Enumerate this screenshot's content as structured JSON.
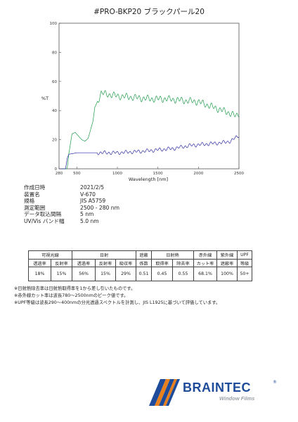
{
  "title": "#PRO-BKP20 ブラックパール20",
  "chart_data": {
    "type": "line",
    "xlabel": "Wavelength [nm]",
    "ylabel": "%T",
    "xlim": [
      280,
      2500
    ],
    "ylim": [
      0,
      100
    ],
    "x_ticks": [
      "280",
      "500",
      "1000",
      "1500",
      "2000",
      "2500"
    ],
    "y_ticks": [
      "0",
      "20",
      "40",
      "60",
      "80",
      "100"
    ],
    "grid": false,
    "series": [
      {
        "color": "#1f9a4a",
        "x": [
          280,
          380,
          400,
          440,
          480,
          560,
          600,
          640,
          700,
          720,
          800,
          900,
          1000,
          1200,
          1400,
          1600,
          1800,
          2000,
          2100,
          2200,
          2300,
          2400,
          2460,
          2500
        ],
        "y": [
          0,
          0,
          10,
          24,
          25,
          20,
          19,
          21,
          33,
          42,
          52,
          51,
          50,
          49,
          48,
          48,
          47,
          46,
          44,
          42,
          40,
          38,
          36,
          38
        ]
      },
      {
        "color": "#2a2aa0",
        "x": [
          280,
          360,
          380,
          400,
          500,
          700,
          1000,
          1300,
          1500,
          1700,
          1900,
          2100,
          2300,
          2400,
          2500
        ],
        "y": [
          0,
          0,
          7,
          10,
          11,
          11,
          11,
          12,
          13,
          14,
          16,
          17,
          18,
          19,
          23
        ]
      }
    ]
  },
  "measurement": [
    {
      "label": "作成日時",
      "value": "2021/2/5"
    },
    {
      "label": "装置名",
      "value": "V-670"
    },
    {
      "label": "規格",
      "value": "JIS A5759"
    },
    {
      "label": "測定範囲",
      "value": "2500 - 280 nm"
    },
    {
      "label": "データ取込間隔",
      "value": "5 nm"
    },
    {
      "label": "UV/Vis バンド幅",
      "value": "5.0 nm"
    }
  ],
  "table": {
    "groups": {
      "visible": "可視光線",
      "solar": "日射",
      "shading": "遮蔽",
      "heat": "日射熱",
      "ir": "赤外線",
      "uv": "紫外線",
      "upf": "UPF"
    },
    "subheaders": [
      "透過率",
      "反射率",
      "透過率",
      "反射率",
      "吸収率",
      "係数",
      "取得率",
      "除去率",
      "カット率",
      "遮蔽率",
      "等級"
    ],
    "values": [
      "18%",
      "15%",
      "56%",
      "15%",
      "29%",
      "0.51",
      "0.45",
      "0.55",
      "68.1%",
      "100%",
      "50+"
    ]
  },
  "notes": [
    "※日射熱除去率は日射熱取得率を1から差し引いたものです。",
    "※赤外線カット率は波長780～2500nmのピーク値です。",
    "※UPF等級は波長290～400nmの分光透過スペクトルを計測し、JIS L1925に基づいて評価しています。"
  ],
  "brand": {
    "name": "BRAINTEC",
    "registered": "®",
    "tagline": "Window Films",
    "colors": {
      "blue": "#1e4c9a",
      "orange": "#e8801e",
      "gray": "#9aa0aa"
    }
  }
}
